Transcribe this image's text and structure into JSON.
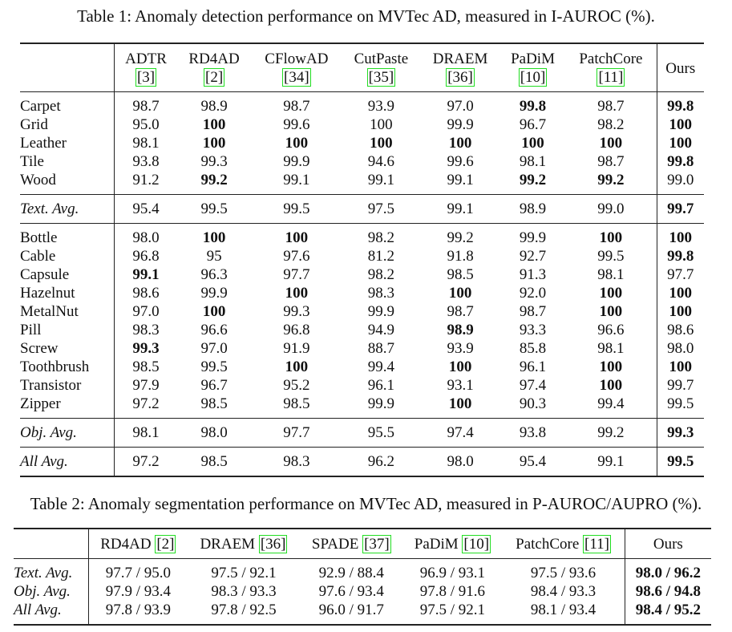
{
  "table1": {
    "caption": "Table 1: Anomaly detection performance on MVTec AD, measured in I-AUROC (%).",
    "columns": [
      {
        "name": "ADTR",
        "ref": "[3]"
      },
      {
        "name": "RD4AD",
        "ref": "[2]"
      },
      {
        "name": "CFlowAD",
        "ref": "[34]"
      },
      {
        "name": "CutPaste",
        "ref": "[35]"
      },
      {
        "name": "DRAEM",
        "ref": "[36]"
      },
      {
        "name": "PaDiM",
        "ref": "[10]"
      },
      {
        "name": "PatchCore",
        "ref": "[11]"
      },
      {
        "name": "Ours"
      }
    ],
    "groups": [
      [
        {
          "label": "Carpet",
          "cells": [
            "98.7",
            "98.9",
            "98.7",
            "93.9",
            "97.0",
            "99.8",
            "98.7",
            "99.8"
          ],
          "bold": [
            5,
            7
          ]
        },
        {
          "label": "Grid",
          "cells": [
            "95.0",
            "100",
            "99.6",
            "100",
            "99.9",
            "96.7",
            "98.2",
            "100"
          ],
          "bold": [
            1,
            7
          ]
        },
        {
          "label": "Leather",
          "cells": [
            "98.1",
            "100",
            "100",
            "100",
            "100",
            "100",
            "100",
            "100"
          ],
          "bold": [
            1,
            2,
            3,
            4,
            5,
            6,
            7
          ]
        },
        {
          "label": "Tile",
          "cells": [
            "93.8",
            "99.3",
            "99.9",
            "94.6",
            "99.6",
            "98.1",
            "98.7",
            "99.8"
          ],
          "bold": [
            7
          ]
        },
        {
          "label": "Wood",
          "cells": [
            "91.2",
            "99.2",
            "99.1",
            "99.1",
            "99.1",
            "99.2",
            "99.2",
            "99.0"
          ],
          "bold": [
            1,
            5,
            6
          ]
        }
      ],
      [
        {
          "label": "Text. Avg.",
          "italic": true,
          "cells": [
            "95.4",
            "99.5",
            "99.5",
            "97.5",
            "99.1",
            "98.9",
            "99.0",
            "99.7"
          ],
          "bold": [
            7
          ]
        }
      ],
      [
        {
          "label": "Bottle",
          "cells": [
            "98.0",
            "100",
            "100",
            "98.2",
            "99.2",
            "99.9",
            "100",
            "100"
          ],
          "bold": [
            1,
            2,
            6,
            7
          ]
        },
        {
          "label": "Cable",
          "cells": [
            "96.8",
            "95",
            "97.6",
            "81.2",
            "91.8",
            "92.7",
            "99.5",
            "99.8"
          ],
          "bold": [
            7
          ]
        },
        {
          "label": "Capsule",
          "cells": [
            "99.1",
            "96.3",
            "97.7",
            "98.2",
            "98.5",
            "91.3",
            "98.1",
            "97.7"
          ],
          "bold": [
            0
          ]
        },
        {
          "label": "Hazelnut",
          "cells": [
            "98.6",
            "99.9",
            "100",
            "98.3",
            "100",
            "92.0",
            "100",
            "100"
          ],
          "bold": [
            2,
            4,
            6,
            7
          ]
        },
        {
          "label": "MetalNut",
          "cells": [
            "97.0",
            "100",
            "99.3",
            "99.9",
            "98.7",
            "98.7",
            "100",
            "100"
          ],
          "bold": [
            1,
            6,
            7
          ]
        },
        {
          "label": "Pill",
          "cells": [
            "98.3",
            "96.6",
            "96.8",
            "94.9",
            "98.9",
            "93.3",
            "96.6",
            "98.6"
          ],
          "bold": [
            4
          ]
        },
        {
          "label": "Screw",
          "cells": [
            "99.3",
            "97.0",
            "91.9",
            "88.7",
            "93.9",
            "85.8",
            "98.1",
            "98.0"
          ],
          "bold": [
            0
          ]
        },
        {
          "label": "Toothbrush",
          "cells": [
            "98.5",
            "99.5",
            "100",
            "99.4",
            "100",
            "96.1",
            "100",
            "100"
          ],
          "bold": [
            2,
            4,
            6,
            7
          ]
        },
        {
          "label": "Transistor",
          "cells": [
            "97.9",
            "96.7",
            "95.2",
            "96.1",
            "93.1",
            "97.4",
            "100",
            "99.7"
          ],
          "bold": [
            6
          ]
        },
        {
          "label": "Zipper",
          "cells": [
            "97.2",
            "98.5",
            "98.5",
            "99.9",
            "100",
            "90.3",
            "99.4",
            "99.5"
          ],
          "bold": [
            4
          ]
        }
      ],
      [
        {
          "label": "Obj. Avg.",
          "italic": true,
          "cells": [
            "98.1",
            "98.0",
            "97.7",
            "95.5",
            "97.4",
            "93.8",
            "99.2",
            "99.3"
          ],
          "bold": [
            7
          ]
        }
      ],
      [
        {
          "label": "All Avg.",
          "italic": true,
          "cells": [
            "97.2",
            "98.5",
            "98.3",
            "96.2",
            "98.0",
            "95.4",
            "99.1",
            "99.5"
          ],
          "bold": [
            7
          ]
        }
      ]
    ]
  },
  "table2": {
    "caption": "Table 2: Anomaly segmentation performance on MVTec AD, measured in P-AUROC/AUPRO (%).",
    "columns": [
      {
        "name": "RD4AD",
        "ref": "[2]"
      },
      {
        "name": "DRAEM",
        "ref": "[36]"
      },
      {
        "name": "SPADE",
        "ref": "[37]"
      },
      {
        "name": "PaDiM",
        "ref": "[10]"
      },
      {
        "name": "PatchCore",
        "ref": "[11]"
      },
      {
        "name": "Ours"
      }
    ],
    "groups": [
      [
        {
          "label": "Text. Avg.",
          "italic": true,
          "cells": [
            "97.7 / 95.0",
            "97.5 / 92.1",
            "92.9 / 88.4",
            "96.9 / 93.1",
            "97.5 / 93.6",
            "98.0 / 96.2"
          ],
          "bold": [
            5
          ]
        },
        {
          "label": "Obj. Avg.",
          "italic": true,
          "cells": [
            "97.9 / 93.4",
            "98.3 / 93.3",
            "97.6 / 93.4",
            "97.8 / 91.6",
            "98.4 / 93.3",
            "98.6 / 94.8"
          ],
          "bold": [
            5
          ]
        },
        {
          "label": "All Avg.",
          "italic": true,
          "cells": [
            "97.8 / 93.9",
            "97.8 / 92.5",
            "96.0 / 91.7",
            "97.5 / 92.1",
            "98.1 / 93.4",
            "98.4 / 95.2"
          ],
          "bold": [
            5
          ]
        }
      ]
    ]
  }
}
